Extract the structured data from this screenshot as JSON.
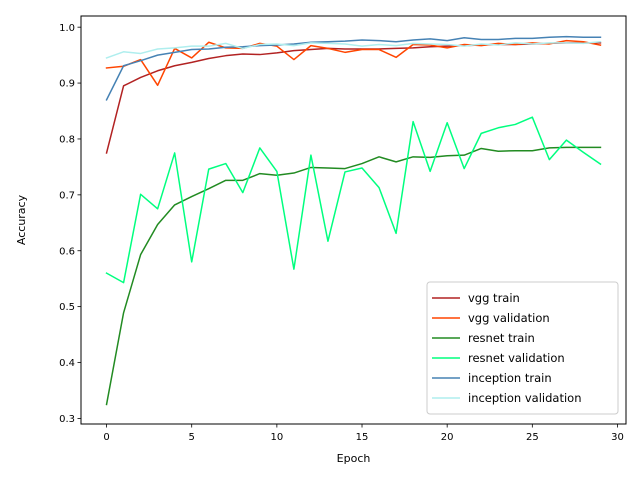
{
  "chart_data": {
    "type": "line",
    "title": "",
    "xlabel": "Epoch",
    "ylabel": "Accuracy",
    "xlim": [
      -1.5,
      30.5
    ],
    "ylim": [
      0.29,
      1.02
    ],
    "xticks": [
      0,
      5,
      10,
      15,
      20,
      25,
      30
    ],
    "yticks": [
      0.3,
      0.4,
      0.5,
      0.6,
      0.7,
      0.8,
      0.9,
      1.0
    ],
    "xtick_labels": [
      "0",
      "5",
      "10",
      "15",
      "20",
      "25",
      "30"
    ],
    "ytick_labels": [
      "0.3",
      "0.4",
      "0.5",
      "0.6",
      "0.7",
      "0.8",
      "0.9",
      "1.0"
    ],
    "grid": false,
    "legend_position": "bottom-right",
    "x": [
      0,
      1,
      2,
      3,
      4,
      5,
      6,
      7,
      8,
      9,
      10,
      11,
      12,
      13,
      14,
      15,
      16,
      17,
      18,
      19,
      20,
      21,
      22,
      23,
      24,
      25,
      26,
      27,
      28,
      29
    ],
    "series": [
      {
        "name": "vgg train",
        "color": "#b22222",
        "values": [
          0.775,
          0.895,
          0.91,
          0.922,
          0.931,
          0.937,
          0.944,
          0.949,
          0.952,
          0.951,
          0.954,
          0.958,
          0.96,
          0.962,
          0.961,
          0.961,
          0.961,
          0.962,
          0.963,
          0.965,
          0.966,
          0.967,
          0.968,
          0.969,
          0.969,
          0.97,
          0.971,
          0.972,
          0.972,
          0.972
        ]
      },
      {
        "name": "vgg validation",
        "color": "#ff4500",
        "values": [
          0.927,
          0.93,
          0.942,
          0.896,
          0.962,
          0.945,
          0.973,
          0.963,
          0.962,
          0.971,
          0.966,
          0.942,
          0.967,
          0.962,
          0.955,
          0.96,
          0.96,
          0.946,
          0.969,
          0.968,
          0.963,
          0.969,
          0.967,
          0.971,
          0.969,
          0.972,
          0.97,
          0.976,
          0.974,
          0.968
        ]
      },
      {
        "name": "resnet train",
        "color": "#228b22",
        "values": [
          0.325,
          0.489,
          0.593,
          0.647,
          0.682,
          0.697,
          0.711,
          0.726,
          0.726,
          0.738,
          0.735,
          0.739,
          0.749,
          0.748,
          0.747,
          0.756,
          0.768,
          0.759,
          0.768,
          0.767,
          0.77,
          0.771,
          0.783,
          0.778,
          0.779,
          0.779,
          0.784,
          0.785,
          0.785,
          0.785
        ]
      },
      {
        "name": "resnet validation",
        "color": "#00ff7f",
        "values": [
          0.56,
          0.543,
          0.701,
          0.675,
          0.775,
          0.58,
          0.746,
          0.756,
          0.704,
          0.784,
          0.742,
          0.567,
          0.771,
          0.617,
          0.741,
          0.748,
          0.713,
          0.631,
          0.831,
          0.742,
          0.829,
          0.747,
          0.81,
          0.82,
          0.826,
          0.839,
          0.763,
          0.798,
          0.776,
          0.755
        ]
      },
      {
        "name": "inception train",
        "color": "#4682b4",
        "values": [
          0.87,
          0.931,
          0.94,
          0.95,
          0.955,
          0.96,
          0.961,
          0.964,
          0.965,
          0.967,
          0.968,
          0.97,
          0.973,
          0.974,
          0.975,
          0.977,
          0.976,
          0.974,
          0.977,
          0.979,
          0.976,
          0.981,
          0.978,
          0.978,
          0.98,
          0.98,
          0.982,
          0.983,
          0.982,
          0.982
        ]
      },
      {
        "name": "inception validation",
        "color": "#afeeee",
        "values": [
          0.945,
          0.956,
          0.953,
          0.961,
          0.963,
          0.966,
          0.966,
          0.971,
          0.962,
          0.969,
          0.97,
          0.967,
          0.972,
          0.971,
          0.97,
          0.966,
          0.969,
          0.967,
          0.971,
          0.97,
          0.969,
          0.966,
          0.97,
          0.968,
          0.972,
          0.97,
          0.972,
          0.972,
          0.971,
          0.974
        ]
      }
    ]
  }
}
